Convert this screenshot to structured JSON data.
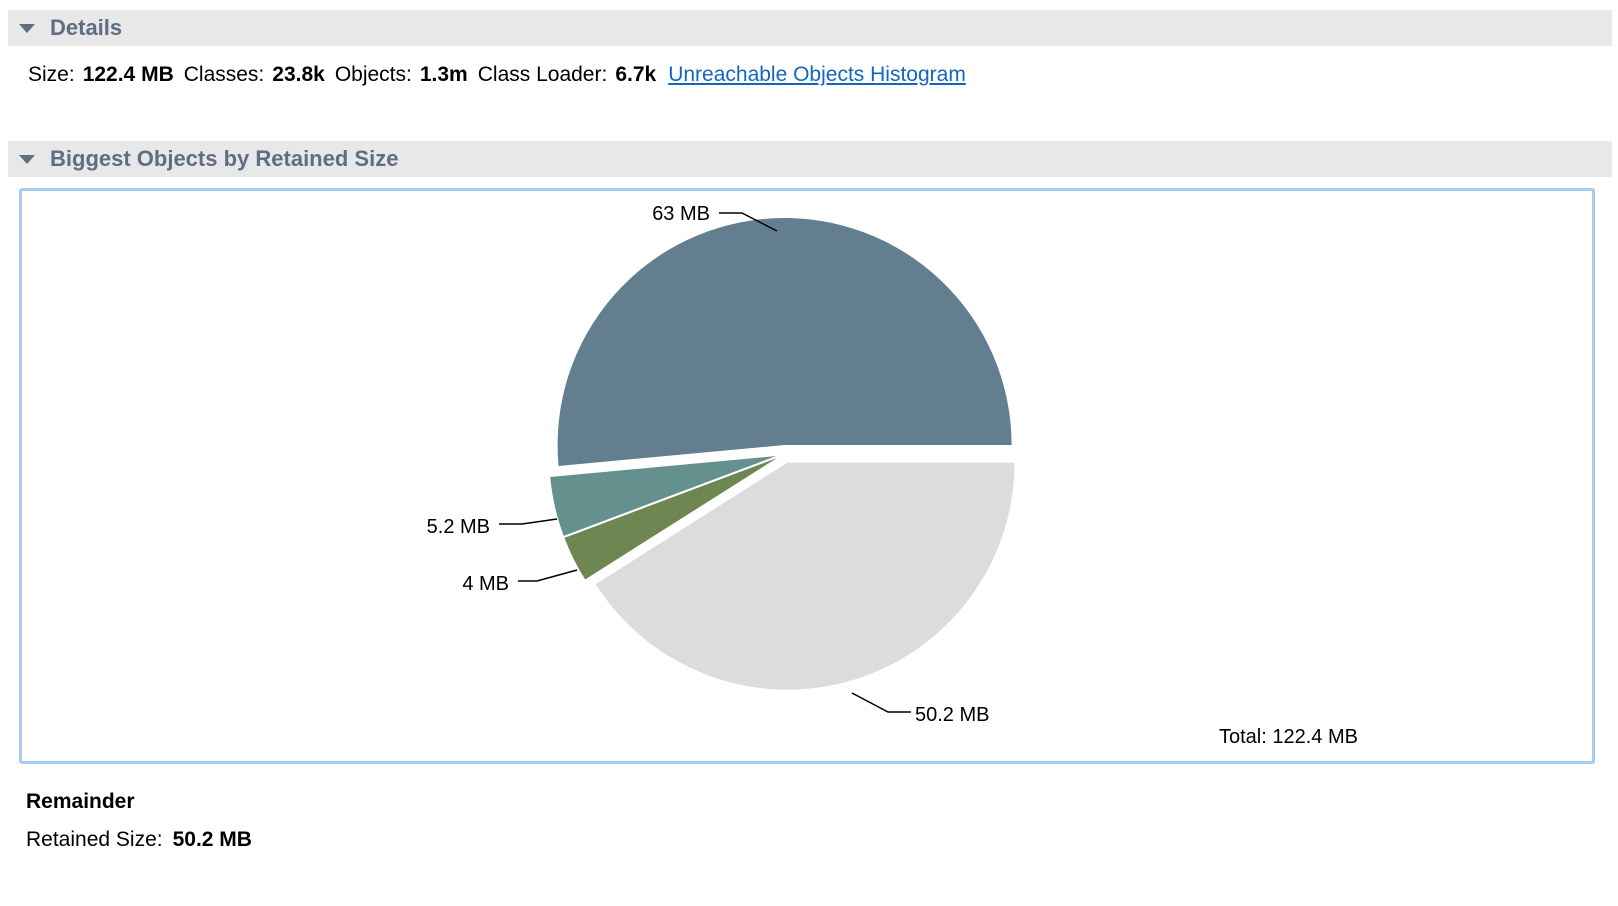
{
  "details": {
    "header": "Details",
    "size_label": "Size:",
    "size_value": "122.4 MB",
    "classes_label": "Classes:",
    "classes_value": "23.8k",
    "objects_label": "Objects:",
    "objects_value": "1.3m",
    "classloader_label": "Class Loader:",
    "classloader_value": "6.7k",
    "link": "Unreachable Objects Histogram"
  },
  "biggest": {
    "header": "Biggest Objects by Retained Size"
  },
  "chart_data": {
    "type": "pie",
    "values": [
      63,
      5.2,
      4,
      50.2
    ],
    "value_labels": [
      "63 MB",
      "5.2 MB",
      "4 MB",
      "50.2 MB"
    ],
    "colors": [
      "#637e8e",
      "#64918e",
      "#6e8752",
      "#dcdcdc"
    ],
    "total_label": "Total: 122.4 MB"
  },
  "selection": {
    "title": "Remainder",
    "retained_label": "Retained Size:",
    "retained_value": "50.2 MB"
  }
}
